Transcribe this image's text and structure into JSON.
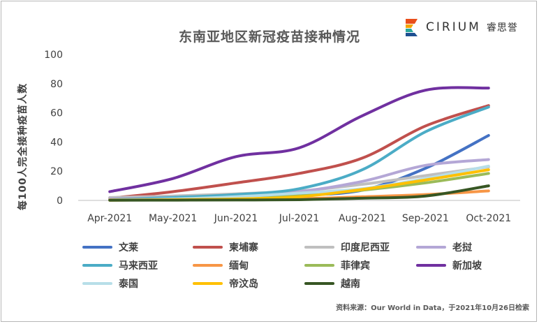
{
  "brand": {
    "name": "CIRIUM",
    "cn_name": "睿思誉",
    "logo_colors": [
      "#e94e1b",
      "#f4a400",
      "#2ba79b",
      "#1d4f91"
    ]
  },
  "chart_data": {
    "type": "line",
    "title": "东南亚地区新冠疫苗接种情况",
    "xlabel": "",
    "ylabel": "每100人完全接种疫苗人数",
    "categories": [
      "Apr-2021",
      "May-2021",
      "Jun-2021",
      "Jul-2021",
      "Aug-2021",
      "Sep-2021",
      "Oct-2021"
    ],
    "ylim": [
      0,
      100
    ],
    "yticks": [
      "0",
      "20",
      "40",
      "60",
      "80",
      "100"
    ],
    "grid": false,
    "legend_position": "bottom",
    "series": [
      {
        "name": "文莱",
        "color": "#4472c4",
        "values": [
          0.5,
          0.8,
          1.2,
          3.5,
          7,
          22,
          44.5
        ]
      },
      {
        "name": "柬埔寨",
        "color": "#c0504d",
        "values": [
          1.5,
          6,
          12,
          18.5,
          29,
          51,
          65
        ]
      },
      {
        "name": "印度尼西亚",
        "color": "#bfbfbf",
        "values": [
          2,
          3,
          4.5,
          6.5,
          11,
          17,
          23
        ]
      },
      {
        "name": "老挝",
        "color": "#b4a7d6",
        "values": [
          1,
          2,
          3.5,
          6,
          13,
          24,
          28
        ]
      },
      {
        "name": "马来西亚",
        "color": "#4bacc6",
        "values": [
          0.5,
          2,
          4,
          8,
          21,
          47,
          64
        ]
      },
      {
        "name": "缅甸",
        "color": "#f79646",
        "values": [
          0.5,
          0.8,
          1,
          1.2,
          2.5,
          4,
          6.5
        ]
      },
      {
        "name": "菲律宾",
        "color": "#9bbb59",
        "values": [
          0.3,
          0.8,
          1.5,
          3.5,
          7,
          12,
          18.5
        ]
      },
      {
        "name": "新加坡",
        "color": "#7030a0",
        "values": [
          6,
          15,
          30,
          36,
          58,
          75.5,
          77
        ]
      },
      {
        "name": "泰国",
        "color": "#b7dee8",
        "values": [
          0.3,
          1,
          2.5,
          5,
          8,
          15,
          23.5
        ]
      },
      {
        "name": "帝汶岛",
        "color": "#ffc000",
        "values": [
          0.1,
          0.5,
          1,
          2.5,
          7.5,
          14,
          21
        ]
      },
      {
        "name": "越南",
        "color": "#375623",
        "values": [
          0.1,
          0.2,
          0.3,
          0.5,
          1.5,
          3,
          10
        ]
      }
    ]
  },
  "source_note": "资料来源：Our World in Data，于2021年10月26日检索"
}
